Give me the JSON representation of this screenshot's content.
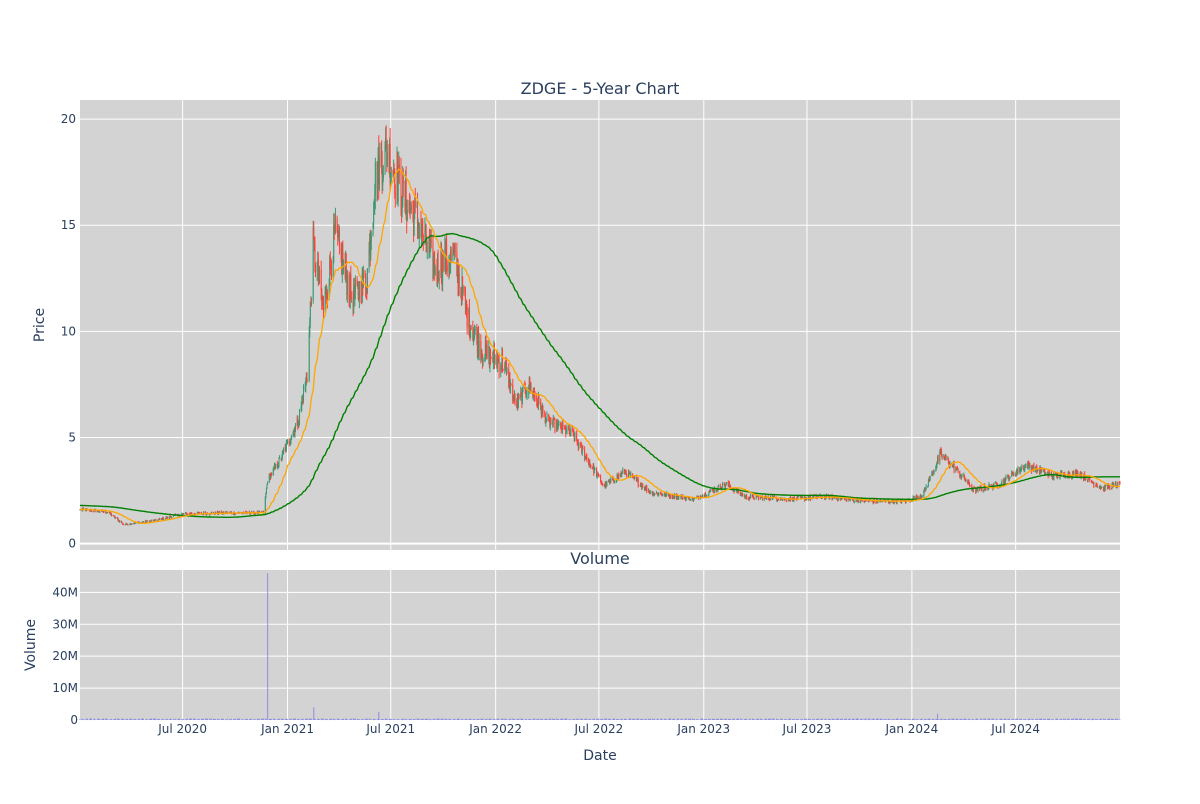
{
  "chart_data": [
    {
      "type": "candlestick",
      "title": "ZDGE - 5-Year Chart",
      "ylabel": "Price",
      "ylim": [
        -0.3,
        20.9
      ],
      "yticks": [
        0,
        5,
        10,
        15,
        20
      ],
      "x_date_range": [
        "2020-01-03",
        "2024-12-31"
      ],
      "grid": true,
      "legend": "none",
      "colors": {
        "background": "#d3d3d3",
        "up": "#3d9970",
        "down": "#ff4136",
        "ma_short": "#ffa500",
        "ma_long": "#008000",
        "grid": "#ffffff"
      },
      "close_keyframes": [
        [
          "2020-01-03",
          1.6
        ],
        [
          "2020-02-20",
          1.5
        ],
        [
          "2020-03-20",
          0.9
        ],
        [
          "2020-05-15",
          1.1
        ],
        [
          "2020-07-01",
          1.4
        ],
        [
          "2020-09-15",
          1.45
        ],
        [
          "2020-11-20",
          1.45
        ],
        [
          "2020-11-27",
          3.0
        ],
        [
          "2020-12-20",
          4.0
        ],
        [
          "2021-01-20",
          5.8
        ],
        [
          "2021-02-05",
          8.0
        ],
        [
          "2021-02-15",
          14.0
        ],
        [
          "2021-03-05",
          11.0
        ],
        [
          "2021-03-25",
          14.5
        ],
        [
          "2021-04-25",
          11.5
        ],
        [
          "2021-05-20",
          12.5
        ],
        [
          "2021-06-05",
          17.5
        ],
        [
          "2021-06-25",
          18.5
        ],
        [
          "2021-07-20",
          16.5
        ],
        [
          "2021-08-20",
          15.0
        ],
        [
          "2021-09-15",
          13.0
        ],
        [
          "2021-10-20",
          13.5
        ],
        [
          "2021-11-15",
          10.5
        ],
        [
          "2021-12-10",
          9.0
        ],
        [
          "2022-01-15",
          8.5
        ],
        [
          "2022-02-05",
          6.5
        ],
        [
          "2022-03-01",
          7.5
        ],
        [
          "2022-04-01",
          5.8
        ],
        [
          "2022-05-15",
          5.2
        ],
        [
          "2022-06-10",
          4.0
        ],
        [
          "2022-07-10",
          2.7
        ],
        [
          "2022-08-15",
          3.4
        ],
        [
          "2022-10-01",
          2.4
        ],
        [
          "2022-12-15",
          2.1
        ],
        [
          "2023-02-10",
          2.8
        ],
        [
          "2023-03-15",
          2.2
        ],
        [
          "2023-06-01",
          2.1
        ],
        [
          "2023-08-01",
          2.2
        ],
        [
          "2023-10-15",
          2.0
        ],
        [
          "2023-12-20",
          2.0
        ],
        [
          "2024-01-20",
          2.3
        ],
        [
          "2024-02-20",
          4.2
        ],
        [
          "2024-03-15",
          3.6
        ],
        [
          "2024-04-20",
          2.5
        ],
        [
          "2024-06-01",
          2.8
        ],
        [
          "2024-07-20",
          3.7
        ],
        [
          "2024-09-01",
          3.2
        ],
        [
          "2024-10-20",
          3.3
        ],
        [
          "2024-12-01",
          2.6
        ],
        [
          "2024-12-31",
          2.8
        ]
      ],
      "ma_short_window_days": 30,
      "ma_long_window_days": 150,
      "ma_long_start_value": 1.8
    },
    {
      "type": "bar",
      "title": "Volume",
      "ylabel": "Volume",
      "xlabel": "Date",
      "ylim": [
        0,
        47000000
      ],
      "yticks": [
        0,
        10000000,
        20000000,
        30000000,
        40000000
      ],
      "ytick_labels": [
        "0",
        "10M",
        "20M",
        "30M",
        "40M"
      ],
      "xticks": [
        "2020-07-01",
        "2021-01-01",
        "2021-07-01",
        "2022-01-01",
        "2022-07-01",
        "2023-01-01",
        "2023-07-01",
        "2024-01-01",
        "2024-07-01"
      ],
      "xtick_labels": [
        "Jul 2020",
        "Jan 2021",
        "Jul 2021",
        "Jan 2022",
        "Jul 2022",
        "Jan 2023",
        "Jul 2023",
        "Jan 2024",
        "Jul 2024"
      ],
      "typical_volume": 300000,
      "spikes": [
        [
          "2020-11-27",
          46000000
        ],
        [
          "2021-02-16",
          4000000
        ],
        [
          "2021-06-10",
          2500000
        ],
        [
          "2024-02-15",
          2000000
        ]
      ],
      "colors": {
        "bar": "#8080e0",
        "background": "#d3d3d3"
      }
    }
  ]
}
